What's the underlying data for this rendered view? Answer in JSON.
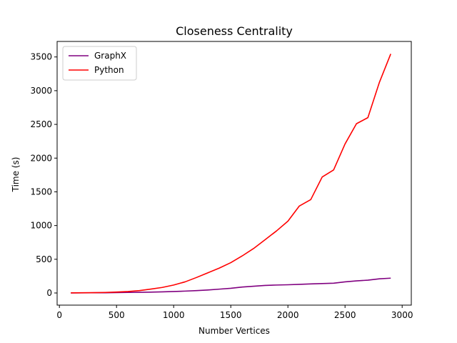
{
  "chart_data": {
    "type": "line",
    "title": "Closeness Centrality",
    "xlabel": "Number Vertices",
    "ylabel": "Time (s)",
    "xlim": [
      -20,
      3080
    ],
    "ylim": [
      -180,
      3730
    ],
    "xticks": [
      0,
      500,
      1000,
      1500,
      2000,
      2500,
      3000
    ],
    "yticks": [
      0,
      500,
      1000,
      1500,
      2000,
      2500,
      3000,
      3500
    ],
    "legend_position": "top-left",
    "x": [
      100,
      200,
      300,
      400,
      500,
      600,
      700,
      800,
      900,
      1000,
      1100,
      1200,
      1300,
      1400,
      1500,
      1600,
      1700,
      1800,
      1900,
      2000,
      2100,
      2200,
      2300,
      2400,
      2500,
      2600,
      2700,
      2800,
      2900
    ],
    "series": [
      {
        "name": "GraphX",
        "color": "#800080",
        "values": [
          1,
          2,
          3,
          4,
          6,
          8,
          10,
          13,
          17,
          22,
          28,
          35,
          45,
          57,
          70,
          88,
          100,
          112,
          118,
          122,
          128,
          135,
          140,
          145,
          165,
          180,
          190,
          210,
          220
        ]
      },
      {
        "name": "Python",
        "color": "#ff0000",
        "values": [
          2,
          3,
          5,
          8,
          14,
          22,
          35,
          58,
          82,
          118,
          165,
          230,
          300,
          370,
          450,
          550,
          660,
          790,
          920,
          1065,
          1290,
          1385,
          1720,
          1825,
          2210,
          2510,
          2600,
          3120,
          3545
        ]
      }
    ]
  }
}
